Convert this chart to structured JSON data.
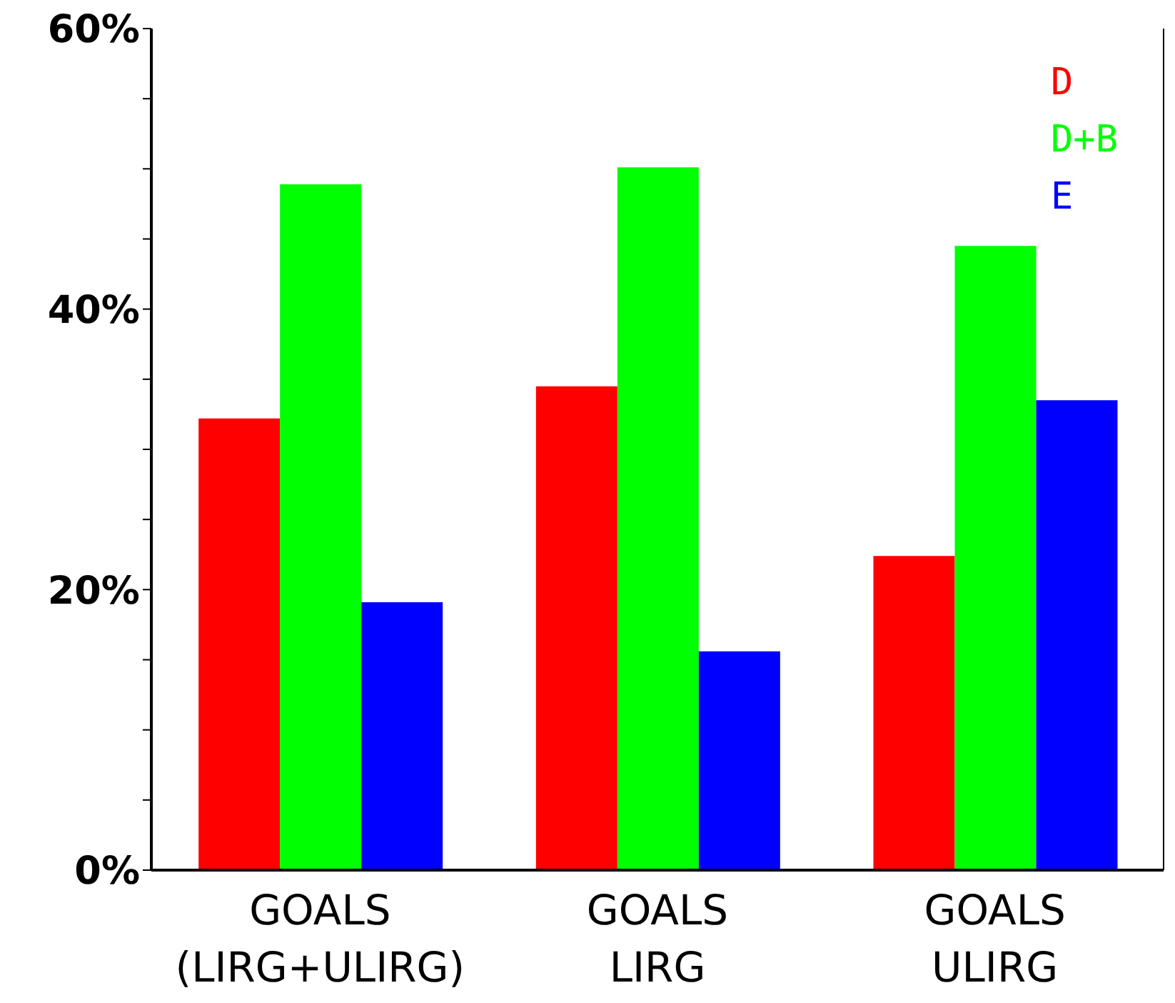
{
  "chart_data": {
    "type": "bar",
    "categories": [
      "GOALS\n(LIRG+ULIRG)",
      "GOALS\nLIRG",
      "GOALS\nULIRG"
    ],
    "series": [
      {
        "name": "D",
        "color": "#ff0000",
        "values": [
          32.2,
          34.5,
          22.4
        ]
      },
      {
        "name": "D+B",
        "color": "#00ff00",
        "values": [
          48.9,
          50.1,
          44.5
        ]
      },
      {
        "name": "E",
        "color": "#0000ff",
        "values": [
          19.1,
          15.6,
          33.5
        ]
      }
    ],
    "ylim": [
      0,
      60
    ],
    "yticks": [
      {
        "value": 0,
        "label": "0%"
      },
      {
        "value": 5,
        "label": null
      },
      {
        "value": 10,
        "label": null
      },
      {
        "value": 15,
        "label": null
      },
      {
        "value": 20,
        "label": "20%"
      },
      {
        "value": 25,
        "label": null
      },
      {
        "value": 30,
        "label": null
      },
      {
        "value": 35,
        "label": null
      },
      {
        "value": 40,
        "label": "40%"
      },
      {
        "value": 45,
        "label": null
      },
      {
        "value": 50,
        "label": null
      },
      {
        "value": 55,
        "label": null
      },
      {
        "value": 60,
        "label": "60%"
      }
    ],
    "legend": "top right",
    "grid": false
  }
}
